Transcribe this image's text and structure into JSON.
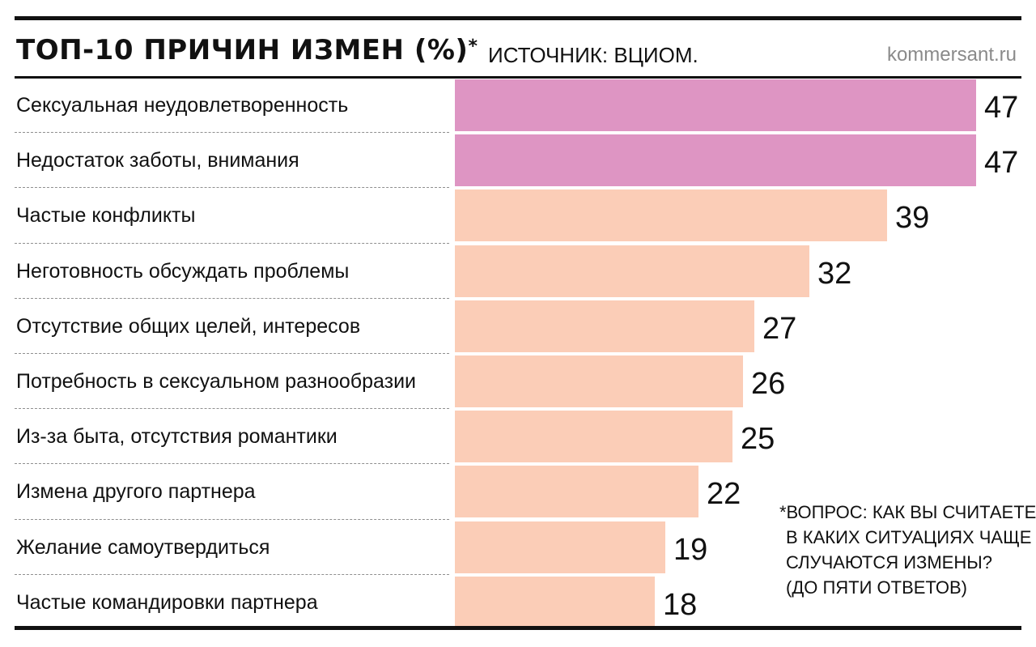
{
  "header": {
    "title": "ТОП-10 ПРИЧИН ИЗМЕН (%)",
    "title_mark": "*",
    "source": "ИСТОЧНИК: ВЦИОМ.",
    "site": "kommersant.ru"
  },
  "footnote": {
    "lines": [
      "*ВОПРОС: КАК ВЫ СЧИТАЕТЕ,",
      "В КАКИХ СИТУАЦИЯХ ЧАЩЕ",
      "СЛУЧАЮТСЯ ИЗМЕНЫ?",
      "(ДО ПЯТИ ОТВЕТОВ)"
    ]
  },
  "colors": {
    "highlight": "#de95c3",
    "normal": "#fbcdb7",
    "text": "#111111"
  },
  "chart_data": {
    "type": "bar",
    "orientation": "horizontal",
    "title": "ТОП-10 ПРИЧИН ИЗМЕН (%)",
    "categories": [
      "Сексуальная неудовлетворенность",
      "Недостаток заботы, внимания",
      "Частые конфликты",
      "Неготовность обсуждать проблемы",
      "Отсутствие общих целей, интересов",
      "Потребность в сексуальном разнообразии",
      "Из-за быта, отсутствия романтики",
      "Измена другого партнера",
      "Желание самоутвердиться",
      "Частые командировки партнера"
    ],
    "values": [
      47,
      47,
      39,
      32,
      27,
      26,
      25,
      22,
      19,
      18
    ],
    "highlighted": [
      true,
      true,
      false,
      false,
      false,
      false,
      false,
      false,
      false,
      false
    ],
    "xlim": [
      0,
      47
    ],
    "grid": false,
    "legend": "none"
  }
}
